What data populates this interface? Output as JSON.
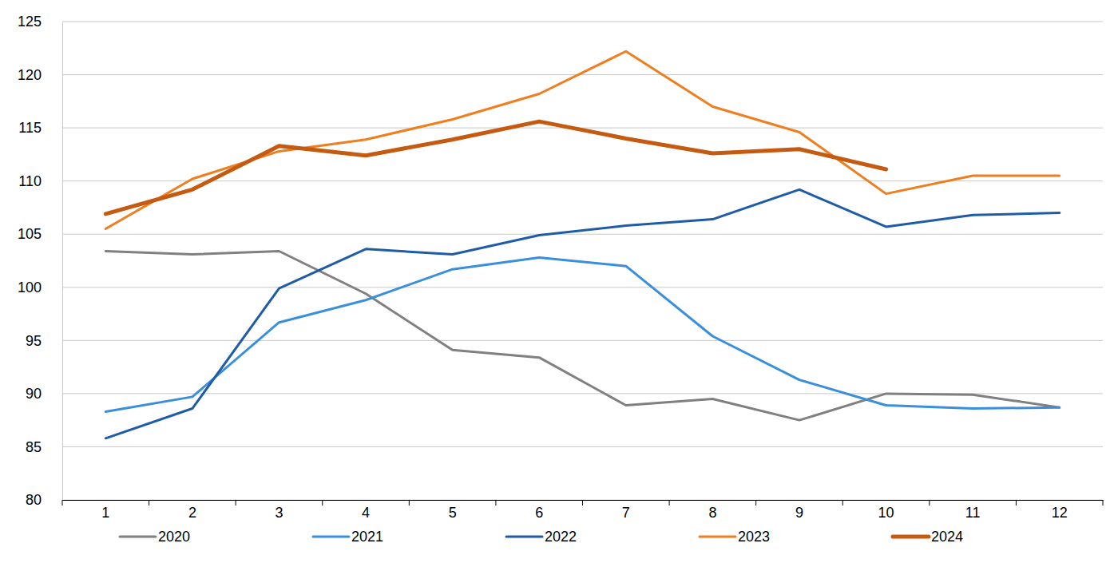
{
  "chart_data": {
    "type": "line",
    "categories": [
      "1",
      "2",
      "3",
      "4",
      "5",
      "6",
      "7",
      "8",
      "9",
      "10",
      "11",
      "12"
    ],
    "series": [
      {
        "name": "2020",
        "color": "#808080",
        "values": [
          103.4,
          103.1,
          103.4,
          99.4,
          94.1,
          93.4,
          88.9,
          89.5,
          87.5,
          90.0,
          89.9,
          88.7
        ]
      },
      {
        "name": "2021",
        "color": "#3a8fdd",
        "values": [
          88.3,
          89.7,
          96.7,
          98.8,
          101.7,
          102.8,
          102.0,
          95.4,
          91.3,
          88.9,
          88.6,
          88.7
        ]
      },
      {
        "name": "2022",
        "color": "#1f5ca8",
        "values": [
          85.8,
          88.6,
          99.9,
          103.6,
          103.1,
          104.9,
          105.8,
          106.4,
          109.2,
          105.7,
          106.8,
          107.0
        ]
      },
      {
        "name": "2023",
        "color": "#f07d1e",
        "values": [
          105.5,
          110.2,
          112.8,
          113.9,
          115.8,
          118.2,
          122.2,
          117.0,
          114.6,
          108.8,
          110.5,
          110.5
        ]
      },
      {
        "name": "2024",
        "color": "#c55a11",
        "values": [
          106.9,
          109.2,
          113.3,
          112.4,
          113.9,
          115.6,
          114.0,
          112.6,
          113.0,
          111.1,
          null,
          null
        ]
      }
    ],
    "ylim": [
      80,
      125
    ],
    "yticks": [
      80,
      85,
      90,
      95,
      100,
      105,
      110,
      115,
      120,
      125
    ],
    "grid": true,
    "legend": "bottom"
  }
}
